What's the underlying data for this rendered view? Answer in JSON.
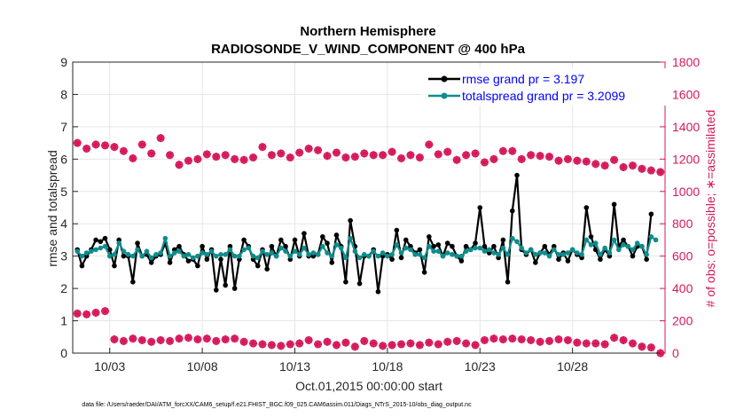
{
  "chart_data": {
    "type": "line",
    "title_line1": "Northern Hemisphere",
    "title_line2": "RADIOSONDE_V_WIND_COMPONENT @ 400 hPa",
    "xlabel": "Oct.01,2015 00:00:00 start",
    "ylabel_left": "rmse and totalspread",
    "ylabel_right": "# of obs: o=possible; ∗=assimilated",
    "footnote": "data file: /Users/raeder/DAI/ATM_forcXX/CAM6_setup/f.e21.FHIST_BGC.f09_025.CAM6assim.011/Diags_NTrS_2015-10/obs_diag_output.nc",
    "x_tick_labels": [
      "10/03",
      "10/08",
      "10/13",
      "10/18",
      "10/23",
      "10/28"
    ],
    "x_tick_days": [
      3,
      8,
      13,
      18,
      23,
      28
    ],
    "xlim_days": [
      1,
      33
    ],
    "y_left_ticks": [
      "0",
      "1",
      "2",
      "3",
      "4",
      "5",
      "6",
      "7",
      "8",
      "9"
    ],
    "ylim_left": [
      0,
      9
    ],
    "y_right_ticks": [
      "0",
      "200",
      "400",
      "600",
      "800",
      "1000",
      "1200",
      "1400",
      "1600",
      "1800"
    ],
    "ylim_right": [
      0,
      1800
    ],
    "legend_position": "top-right",
    "colors": {
      "rmse": "#000000",
      "totalspread": "#0f8c8c",
      "obs": "#d6185a",
      "right_axis": "#d6185a",
      "legend_text": "#0000ff"
    },
    "series": [
      {
        "name": "rmse grand pr = 3.197",
        "x_start_day": 1.25,
        "x_step_days": 0.25,
        "values": [
          3.2,
          2.7,
          3.0,
          3.2,
          3.5,
          3.45,
          3.55,
          3.2,
          2.7,
          3.5,
          3.0,
          3.0,
          2.2,
          3.4,
          3.0,
          3.05,
          2.8,
          3.0,
          3.05,
          3.4,
          2.8,
          3.2,
          3.3,
          3.05,
          2.85,
          2.9,
          2.7,
          3.3,
          2.9,
          3.2,
          1.95,
          2.9,
          2.1,
          3.3,
          2.0,
          2.9,
          3.5,
          3.3,
          2.9,
          2.7,
          3.2,
          2.6,
          3.3,
          3.0,
          3.5,
          3.3,
          2.9,
          3.5,
          3.0,
          3.7,
          3.0,
          3.0,
          3.05,
          3.6,
          3.4,
          2.8,
          3.65,
          3.3,
          2.2,
          4.1,
          3.3,
          2.15,
          3.0,
          3.0,
          3.2,
          1.9,
          3.0,
          3.05,
          2.9,
          3.8,
          2.95,
          3.5,
          3.3,
          3.1,
          3.2,
          2.5,
          3.6,
          3.3,
          3.35,
          3.0,
          3.4,
          3.3,
          3.0,
          2.85,
          3.3,
          3.2,
          3.4,
          4.5,
          3.3,
          3.1,
          3.3,
          2.95,
          3.5,
          2.2,
          4.4,
          5.5,
          3.2,
          3.05,
          3.2,
          2.8,
          3.1,
          3.3,
          3.05,
          3.3,
          2.9,
          3.1,
          2.85,
          3.2,
          3.05,
          2.95,
          4.5,
          3.6,
          3.2,
          2.9,
          3.2,
          3.0,
          4.6,
          3.3,
          3.5,
          3.3,
          3.0,
          3.3,
          3.3,
          2.9,
          4.3
        ]
      },
      {
        "name": "totalspread grand pr = 3.2099",
        "x_start_day": 1.25,
        "x_step_days": 0.25,
        "values": [
          3.15,
          3.0,
          3.1,
          3.15,
          3.2,
          3.25,
          3.3,
          3.0,
          3.05,
          3.4,
          3.15,
          3.05,
          3.0,
          3.2,
          3.0,
          3.15,
          2.95,
          3.05,
          3.1,
          3.55,
          3.0,
          3.1,
          3.15,
          3.0,
          3.05,
          2.95,
          3.0,
          3.1,
          3.05,
          3.15,
          3.0,
          3.05,
          3.05,
          3.2,
          3.0,
          3.0,
          3.2,
          3.25,
          3.0,
          2.95,
          3.15,
          3.05,
          3.1,
          3.0,
          3.25,
          3.15,
          3.0,
          3.15,
          3.05,
          3.25,
          3.05,
          3.1,
          3.05,
          3.3,
          3.1,
          3.0,
          3.35,
          3.25,
          2.95,
          3.55,
          3.15,
          2.95,
          3.05,
          3.0,
          3.15,
          3.0,
          3.1,
          3.0,
          3.05,
          3.35,
          3.1,
          3.25,
          3.2,
          3.05,
          3.05,
          2.95,
          3.3,
          3.15,
          3.15,
          3.0,
          3.1,
          3.05,
          3.0,
          3.0,
          3.15,
          3.2,
          3.25,
          3.25,
          3.15,
          3.2,
          3.1,
          3.05,
          3.25,
          3.05,
          3.55,
          3.45,
          3.25,
          3.1,
          3.2,
          3.05,
          3.1,
          3.1,
          3.0,
          3.2,
          3.05,
          3.05,
          3.1,
          3.2,
          3.1,
          3.05,
          3.5,
          3.35,
          3.4,
          3.05,
          3.25,
          3.1,
          3.5,
          3.2,
          3.35,
          3.3,
          3.2,
          3.4,
          3.3,
          3.05,
          3.6,
          3.5
        ]
      }
    ],
    "obs_possible": {
      "x_start_day": 1.25,
      "x_step_days": 0.5,
      "values": [
        1300,
        1265,
        1290,
        1285,
        1275,
        1250,
        1205,
        1290,
        1235,
        1330,
        1225,
        1165,
        1190,
        1200,
        1230,
        1215,
        1225,
        1200,
        1195,
        1210,
        1275,
        1225,
        1235,
        1210,
        1240,
        1265,
        1255,
        1220,
        1240,
        1210,
        1215,
        1235,
        1225,
        1225,
        1245,
        1205,
        1225,
        1210,
        1290,
        1230,
        1245,
        1195,
        1225,
        1235,
        1180,
        1200,
        1250,
        1250,
        1200,
        1225,
        1220,
        1215,
        1190,
        1200,
        1190,
        1185,
        1170,
        1160,
        1195,
        1150,
        1160,
        1140,
        1130,
        1120
      ]
    },
    "obs_assimilated": {
      "x_start_day": 1.25,
      "x_step_days": 0.5,
      "values": [
        1300,
        1265,
        1290,
        1285,
        1275,
        1250,
        1205,
        1290,
        1235,
        1330,
        1225,
        1165,
        1190,
        1200,
        1230,
        1215,
        1225,
        1200,
        1195,
        1210,
        1275,
        1225,
        1235,
        1210,
        1240,
        1265,
        1255,
        1220,
        1240,
        1210,
        1215,
        1235,
        1225,
        1225,
        1245,
        1205,
        1225,
        1210,
        1290,
        1230,
        1245,
        1195,
        1225,
        1235,
        1180,
        1200,
        1250,
        1250,
        1200,
        1225,
        1220,
        1215,
        1190,
        1200,
        1190,
        1185,
        1170,
        1160,
        1195,
        1150,
        1160,
        1140,
        1130,
        1120
      ]
    },
    "obs_low_possible": {
      "x_start_day": 1.25,
      "x_step_days": 0.5,
      "values": [
        245,
        240,
        250,
        260,
        85,
        75,
        90,
        80,
        70,
        80,
        75,
        90,
        95,
        85,
        90,
        75,
        85,
        90,
        70,
        60,
        55,
        50,
        45,
        55,
        60,
        80,
        55,
        70,
        50,
        65,
        40,
        75,
        60,
        45,
        50,
        55,
        60,
        50,
        65,
        55,
        70,
        75,
        60,
        50,
        80,
        90,
        85,
        90,
        85,
        80,
        70,
        75,
        85,
        80,
        65,
        60,
        60,
        55,
        95,
        80,
        60,
        40,
        35,
        0
      ]
    }
  }
}
